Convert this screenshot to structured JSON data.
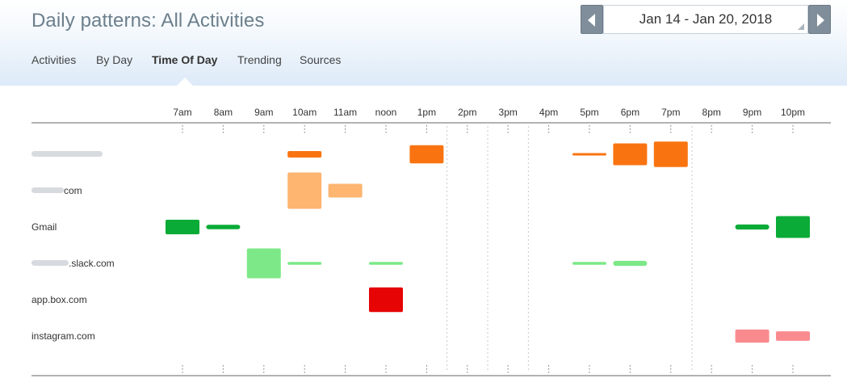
{
  "header": {
    "title": "Daily patterns: All Activities",
    "tabs": [
      {
        "label": "Activities",
        "active": false
      },
      {
        "label": "By Day",
        "active": false
      },
      {
        "label": "Time Of Day",
        "active": true
      },
      {
        "label": "Trending",
        "active": false
      },
      {
        "label": "Sources",
        "active": false
      }
    ]
  },
  "date_range": {
    "value": "Jan 14 - Jan 20, 2018",
    "prev_icon": "chevron-left-icon",
    "next_icon": "chevron-right-icon"
  },
  "chart_data": {
    "type": "heatmap",
    "hours": [
      "7am",
      "8am",
      "9am",
      "10am",
      "11am",
      "noon",
      "1pm",
      "2pm",
      "3pm",
      "4pm",
      "5pm",
      "6pm",
      "7pm",
      "8pm",
      "9pm",
      "10pm"
    ],
    "rows": [
      {
        "label": "",
        "blurred": true,
        "color": "#f97410",
        "cells": [
          {
            "hour": "10am",
            "level": 0.18
          },
          {
            "hour": "1pm",
            "level": 0.5
          },
          {
            "hour": "5pm",
            "level": 0.06
          },
          {
            "hour": "6pm",
            "level": 0.6
          },
          {
            "hour": "7pm",
            "level": 0.7
          }
        ]
      },
      {
        "label": "com",
        "blurred_prefix": true,
        "color": "#fdb570",
        "cells": [
          {
            "hour": "10am",
            "level": 1.0
          },
          {
            "hour": "11am",
            "level": 0.38
          }
        ]
      },
      {
        "label": "Gmail",
        "blurred": false,
        "color": "#0aab36",
        "cells": [
          {
            "hour": "7am",
            "level": 0.4
          },
          {
            "hour": "8am",
            "level": 0.12
          },
          {
            "hour": "9pm",
            "level": 0.14
          },
          {
            "hour": "10pm",
            "level": 0.6
          }
        ]
      },
      {
        "label": ".slack.com",
        "blurred_prefix": true,
        "color": "#7de888",
        "cells": [
          {
            "hour": "9am",
            "level": 0.82
          },
          {
            "hour": "10am",
            "level": 0.08
          },
          {
            "hour": "noon",
            "level": 0.08
          },
          {
            "hour": "5pm",
            "level": 0.08
          },
          {
            "hour": "6pm",
            "level": 0.14
          }
        ]
      },
      {
        "label": "app.box.com",
        "blurred": false,
        "color": "#e60404",
        "cells": [
          {
            "hour": "noon",
            "level": 0.68
          }
        ]
      },
      {
        "label": "instagram.com",
        "blurred": false,
        "color": "#f98b8f",
        "cells": [
          {
            "hour": "9pm",
            "level": 0.36
          },
          {
            "hour": "10pm",
            "level": 0.26
          }
        ]
      }
    ]
  }
}
